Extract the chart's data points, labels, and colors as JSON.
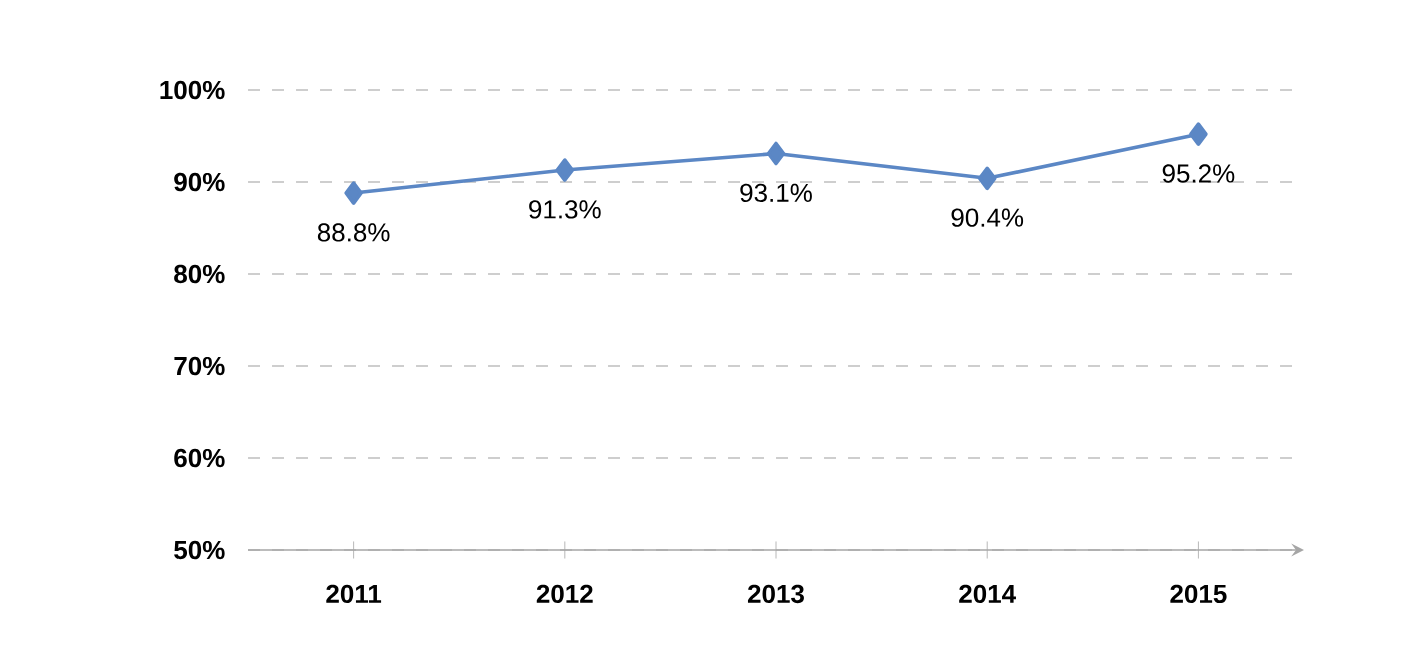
{
  "chart_data": {
    "type": "line",
    "categories": [
      "2011",
      "2012",
      "2013",
      "2014",
      "2015"
    ],
    "series": [
      {
        "color": "#5b87c5",
        "values": [
          88.8,
          91.3,
          93.1,
          90.4,
          95.2
        ],
        "value_labels": [
          "88.8%",
          "91.3%",
          "93.1%",
          "90.4%",
          "95.2%"
        ]
      }
    ],
    "ylim": [
      50,
      100
    ],
    "yticks": [
      {
        "value": 50,
        "label": "50%"
      },
      {
        "value": 60,
        "label": "60%"
      },
      {
        "value": 70,
        "label": "70%"
      },
      {
        "value": 80,
        "label": "80%"
      },
      {
        "value": 90,
        "label": "90%"
      },
      {
        "value": 100,
        "label": "100%"
      }
    ],
    "grid": "y",
    "marker": "diamond",
    "line_style": "solid"
  }
}
